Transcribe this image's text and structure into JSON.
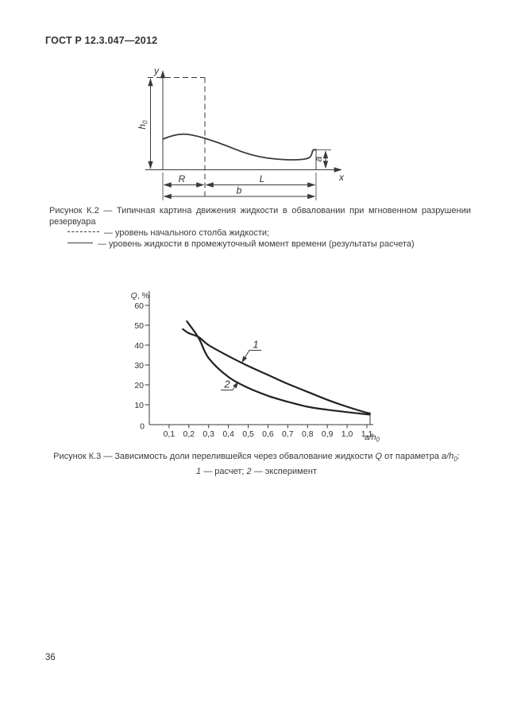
{
  "page": {
    "header": "ГОСТ Р 12.3.047—2012",
    "page_number": "36"
  },
  "figure_k2": {
    "axis": {
      "y": "y",
      "x": "x"
    },
    "dims": {
      "h_main": "h",
      "h_sub": "0",
      "a": "a",
      "r": "R",
      "l": "L",
      "b": "b"
    },
    "caption_line1": "Рисунок К.2 — Типичная картина движения жидкости в обваловании при мгновенном разрушении резервуара",
    "legend": [
      {
        "style": "dashed",
        "text": "— уровень начального столба жидкости;"
      },
      {
        "style": "solid",
        "text": "— уровень жидкости в промежуточный момент времени (результаты расчета)"
      }
    ]
  },
  "figure_k3": {
    "ylabel_main": "Q",
    "ylabel_rest": ", %",
    "xlabel_main": "a/h",
    "xlabel_sub": "0",
    "caption": {
      "part1": "Рисунок  К.3 — Зависимость доли перелившейся через обвалование жидкости ",
      "q": "Q",
      "part2": " от параметра ",
      "ah": "a/h",
      "ah_sub": "0",
      "colon": ":",
      "s1": "1",
      "mid": " — расчет; ",
      "s2": "2",
      "end": " — эксперимент"
    }
  },
  "chart_data": {
    "type": "line",
    "ylabel": "Q, %",
    "xlabel": "a/h0",
    "xlim": [
      0,
      1.1
    ],
    "ylim": [
      0,
      60
    ],
    "grid": false,
    "origin_label": "0",
    "y_ticks": [
      10,
      20,
      30,
      40,
      50,
      60
    ],
    "x_tick_labels": [
      "0,1",
      "0,2",
      "0,3",
      "0,4",
      "0,5",
      "0,6",
      "0,7",
      "0,8",
      "0,9",
      "1,0",
      "1,1"
    ],
    "x_tick_values": [
      0.1,
      0.2,
      0.3,
      0.4,
      0.5,
      0.6,
      0.7,
      0.8,
      0.9,
      1.0,
      1.1
    ],
    "series": [
      {
        "label": "1",
        "name": "расчет",
        "points": [
          [
            0.17,
            48
          ],
          [
            0.2,
            46
          ],
          [
            0.25,
            44
          ],
          [
            0.3,
            40
          ],
          [
            0.4,
            34.5
          ],
          [
            0.5,
            29.5
          ],
          [
            0.6,
            25
          ],
          [
            0.7,
            20.5
          ],
          [
            0.8,
            16.5
          ],
          [
            0.9,
            12.5
          ],
          [
            1.0,
            9
          ],
          [
            1.1,
            6
          ],
          [
            1.115,
            5.8
          ]
        ]
      },
      {
        "label": "2",
        "name": "эксперимент",
        "points": [
          [
            0.19,
            52
          ],
          [
            0.25,
            43.5
          ],
          [
            0.3,
            33.5
          ],
          [
            0.4,
            24
          ],
          [
            0.5,
            18.5
          ],
          [
            0.6,
            14.5
          ],
          [
            0.7,
            11.5
          ],
          [
            0.8,
            9
          ],
          [
            0.9,
            7.5
          ],
          [
            1.0,
            6.3
          ],
          [
            1.1,
            5.2
          ],
          [
            1.115,
            5.1
          ]
        ]
      }
    ]
  }
}
